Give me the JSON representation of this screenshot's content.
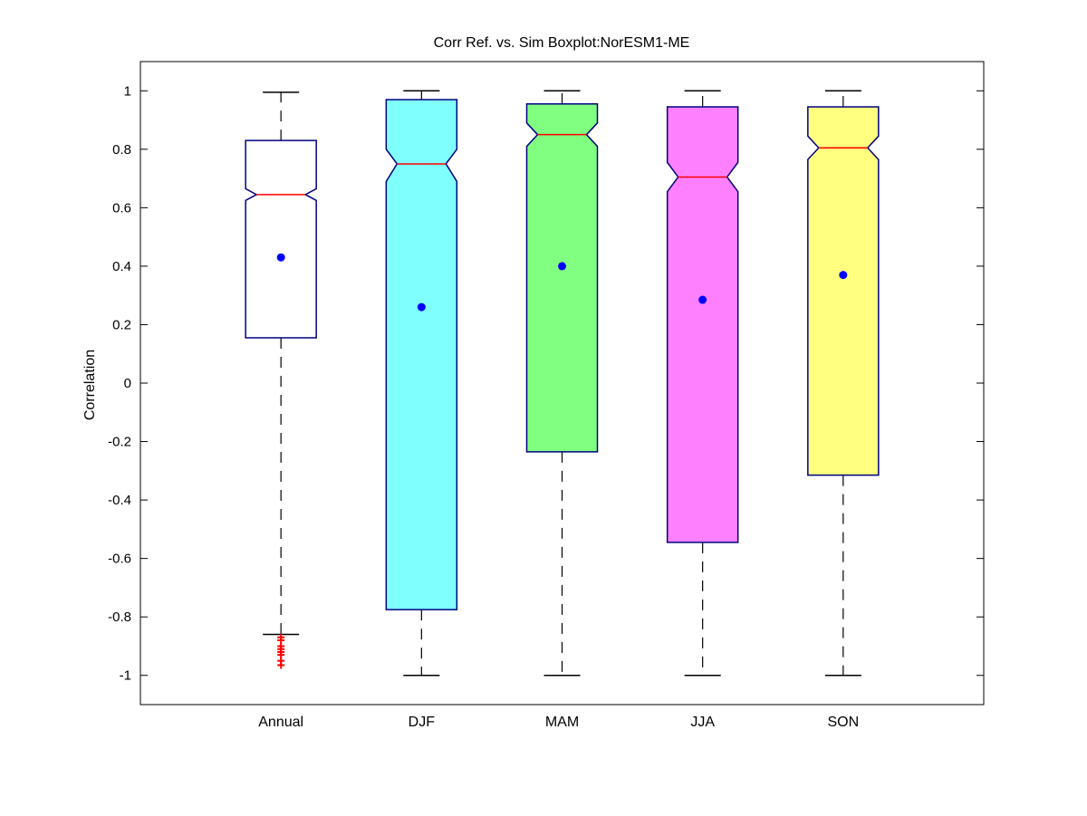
{
  "chart_data": {
    "type": "boxplot",
    "title": "Corr Ref. vs. Sim Boxplot:NorESM1-ME",
    "xlabel": "",
    "ylabel": "Correlation",
    "ylim": [
      -1.1,
      1.1
    ],
    "yticks": [
      -1,
      -0.8,
      -0.6,
      -0.4,
      -0.2,
      0,
      0.2,
      0.4,
      0.6,
      0.8,
      1
    ],
    "ytick_labels": [
      "-1",
      "-0.8",
      "-0.6",
      "-0.4",
      "-0.2",
      "0",
      "0.2",
      "0.4",
      "0.6",
      "0.8",
      "1"
    ],
    "categories": [
      "Annual",
      "DJF",
      "MAM",
      "JJA",
      "SON"
    ],
    "grid": false,
    "legend": "none",
    "boxes": [
      {
        "label": "Annual",
        "color": "#ffffff",
        "whisker_low": -0.86,
        "q1": 0.155,
        "median": 0.645,
        "q3": 0.83,
        "whisker_high": 0.995,
        "notch_low": 0.625,
        "notch_high": 0.665,
        "mean": 0.43,
        "outliers": [
          -0.87,
          -0.88,
          -0.9,
          -0.91,
          -0.92,
          -0.93,
          -0.95,
          -0.965
        ]
      },
      {
        "label": "DJF",
        "color": "#80ffff",
        "whisker_low": -1.0,
        "q1": -0.775,
        "median": 0.75,
        "q3": 0.97,
        "whisker_high": 1.0,
        "notch_low": 0.69,
        "notch_high": 0.8,
        "mean": 0.26,
        "outliers": []
      },
      {
        "label": "MAM",
        "color": "#80ff80",
        "whisker_low": -1.0,
        "q1": -0.235,
        "median": 0.85,
        "q3": 0.955,
        "whisker_high": 1.0,
        "notch_low": 0.81,
        "notch_high": 0.89,
        "mean": 0.4,
        "outliers": []
      },
      {
        "label": "JJA",
        "color": "#ff80ff",
        "whisker_low": -1.0,
        "q1": -0.545,
        "median": 0.705,
        "q3": 0.945,
        "whisker_high": 1.0,
        "notch_low": 0.655,
        "notch_high": 0.755,
        "mean": 0.285,
        "outliers": []
      },
      {
        "label": "SON",
        "color": "#ffff80",
        "whisker_low": -1.0,
        "q1": -0.315,
        "median": 0.805,
        "q3": 0.945,
        "whisker_high": 1.0,
        "notch_low": 0.765,
        "notch_high": 0.845,
        "mean": 0.37,
        "outliers": []
      }
    ],
    "colors": {
      "box_edge": "#000080",
      "median": "#ff0000",
      "mean": "#0000ff",
      "outlier": "#ff0000",
      "whisker": "#000000"
    }
  }
}
